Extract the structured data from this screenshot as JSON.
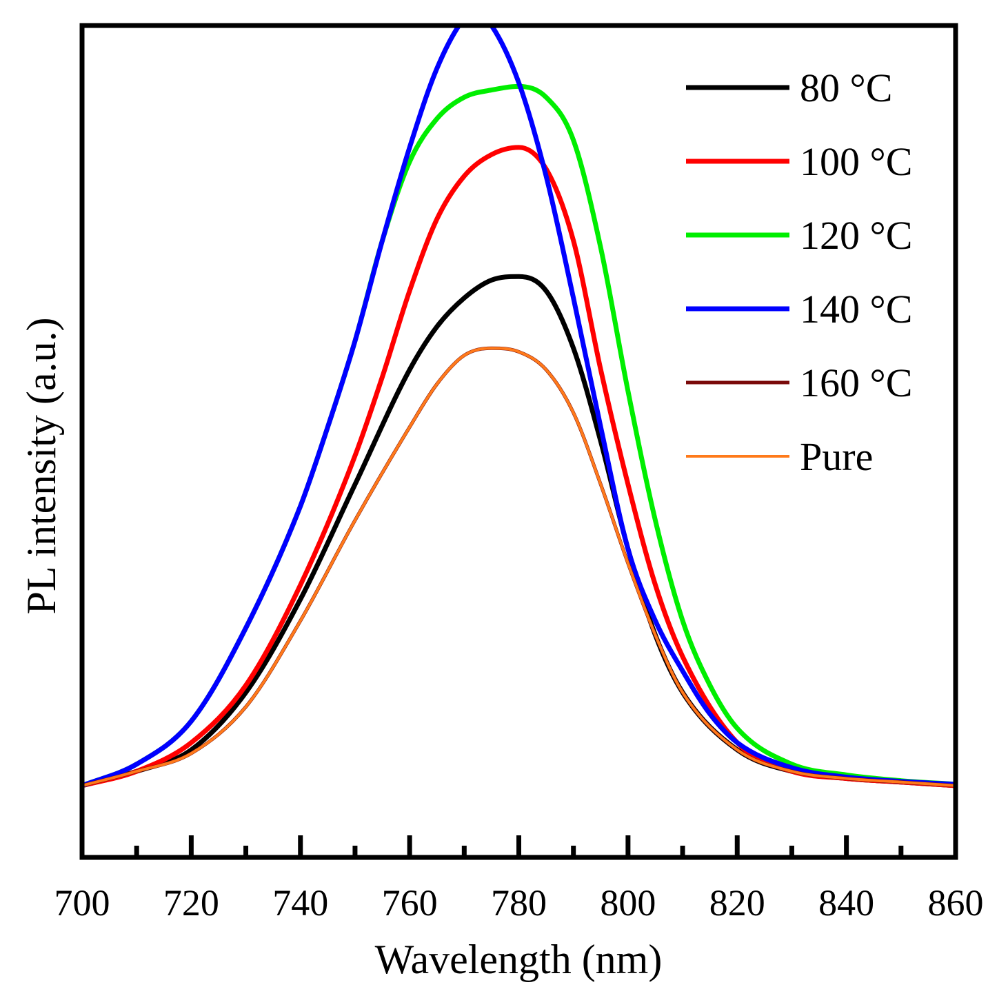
{
  "chart_data": {
    "type": "line",
    "title": "",
    "xlabel": "Wavelength (nm)",
    "ylabel": "PL intensity (a.u.)",
    "xlim": [
      700,
      860
    ],
    "ylim": [
      -0.1,
      1.06
    ],
    "xticks": [
      700,
      720,
      740,
      760,
      780,
      800,
      820,
      840,
      860
    ],
    "x_minor_ticks": [
      710,
      730,
      750,
      770,
      790,
      810,
      830,
      850
    ],
    "y_tick_labels": "none",
    "grid": false,
    "legend_position": "top-right",
    "series": [
      {
        "name": "80 °C",
        "color": "#000000",
        "x": [
          700,
          710,
          720,
          730,
          740,
          750,
          760,
          765,
          770,
          775,
          780,
          785,
          790,
          795,
          800,
          805,
          810,
          820,
          830,
          840,
          850,
          860
        ],
        "values": [
          0.0,
          0.02,
          0.05,
          0.13,
          0.26,
          0.42,
          0.58,
          0.64,
          0.68,
          0.705,
          0.71,
          0.69,
          0.61,
          0.48,
          0.33,
          0.21,
          0.13,
          0.05,
          0.02,
          0.01,
          0.005,
          0.0
        ]
      },
      {
        "name": "100 °C",
        "color": "#ff0000",
        "x": [
          700,
          710,
          720,
          730,
          740,
          750,
          755,
          760,
          765,
          770,
          775,
          780,
          785,
          790,
          795,
          800,
          805,
          810,
          820,
          830,
          840,
          850,
          860
        ],
        "values": [
          0.0,
          0.02,
          0.06,
          0.14,
          0.28,
          0.46,
          0.57,
          0.69,
          0.79,
          0.85,
          0.88,
          0.89,
          0.86,
          0.76,
          0.58,
          0.42,
          0.28,
          0.18,
          0.06,
          0.02,
          0.01,
          0.005,
          0.0
        ]
      },
      {
        "name": "120 °C",
        "color": "#00ee00",
        "x": [
          700,
          710,
          720,
          730,
          740,
          745,
          750,
          755,
          760,
          765,
          770,
          775,
          780,
          785,
          790,
          795,
          800,
          805,
          810,
          815,
          820,
          830,
          840,
          850,
          860
        ],
        "values": [
          0.0,
          0.03,
          0.09,
          0.22,
          0.39,
          0.5,
          0.62,
          0.76,
          0.87,
          0.93,
          0.96,
          0.97,
          0.975,
          0.96,
          0.9,
          0.75,
          0.55,
          0.37,
          0.23,
          0.14,
          0.08,
          0.03,
          0.015,
          0.007,
          0.002
        ]
      },
      {
        "name": "140 °C",
        "color": "#0000ff",
        "x": [
          700,
          710,
          720,
          730,
          740,
          745,
          750,
          755,
          760,
          765,
          770,
          772,
          775,
          780,
          785,
          790,
          795,
          800,
          805,
          810,
          815,
          820,
          830,
          840,
          850,
          860
        ],
        "values": [
          0.0,
          0.03,
          0.09,
          0.22,
          0.39,
          0.5,
          0.62,
          0.76,
          0.89,
          1.0,
          1.07,
          1.08,
          1.06,
          0.98,
          0.85,
          0.68,
          0.5,
          0.33,
          0.23,
          0.16,
          0.1,
          0.06,
          0.025,
          0.012,
          0.006,
          0.002
        ]
      },
      {
        "name": "160 °C",
        "color": "#7a0a0a",
        "x": [
          700,
          710,
          720,
          730,
          740,
          750,
          760,
          765,
          770,
          775,
          780,
          785,
          790,
          795,
          800,
          805,
          810,
          820,
          830,
          840,
          850,
          860
        ],
        "values": [
          0.0,
          0.02,
          0.045,
          0.11,
          0.23,
          0.37,
          0.5,
          0.56,
          0.6,
          0.61,
          0.605,
          0.58,
          0.52,
          0.42,
          0.31,
          0.21,
          0.13,
          0.05,
          0.02,
          0.01,
          0.005,
          0.0
        ]
      },
      {
        "name": "Pure",
        "color": "#ff7a1a",
        "x": [
          700,
          710,
          720,
          730,
          740,
          750,
          760,
          765,
          770,
          775,
          780,
          785,
          790,
          795,
          800,
          805,
          810,
          820,
          830,
          840,
          850,
          860
        ],
        "values": [
          0.0,
          0.02,
          0.045,
          0.11,
          0.23,
          0.37,
          0.5,
          0.56,
          0.6,
          0.61,
          0.605,
          0.58,
          0.52,
          0.42,
          0.31,
          0.21,
          0.13,
          0.05,
          0.02,
          0.01,
          0.005,
          0.0
        ]
      }
    ]
  }
}
